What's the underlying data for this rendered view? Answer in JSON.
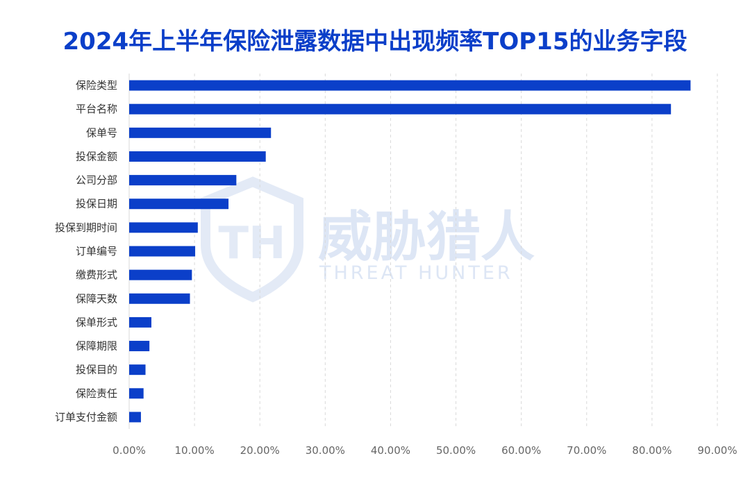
{
  "chart_data": {
    "type": "bar",
    "orientation": "horizontal",
    "title": "2024年上半年保险泄露数据中出现频率TOP15的业务字段",
    "categories": [
      "保险类型",
      "平台名称",
      "保单号",
      "投保金额",
      "公司分部",
      "投保日期",
      "投保到期时间",
      "订单编号",
      "缴费形式",
      "保障天数",
      "保单形式",
      "保障期限",
      "投保目的",
      "保险责任",
      "订单支付金额"
    ],
    "values": [
      85.9,
      82.9,
      21.7,
      20.9,
      16.4,
      15.2,
      10.5,
      10.1,
      9.6,
      9.3,
      3.4,
      3.1,
      2.5,
      2.2,
      1.8
    ],
    "xlim": [
      0,
      90
    ],
    "xticks": [
      0,
      10,
      20,
      30,
      40,
      50,
      60,
      70,
      80,
      90
    ],
    "xtick_labels": [
      "0.00%",
      "10.00%",
      "20.00%",
      "30.00%",
      "40.00%",
      "50.00%",
      "60.00%",
      "70.00%",
      "80.00%",
      "90.00%"
    ],
    "grid": true,
    "bar_color": "#0b3fc9",
    "legend": "none"
  },
  "watermark": {
    "name": "威胁猎人",
    "subtitle": "THREAT HUNTER",
    "color": "#dde6f5",
    "icon": "shield-th-logo"
  }
}
